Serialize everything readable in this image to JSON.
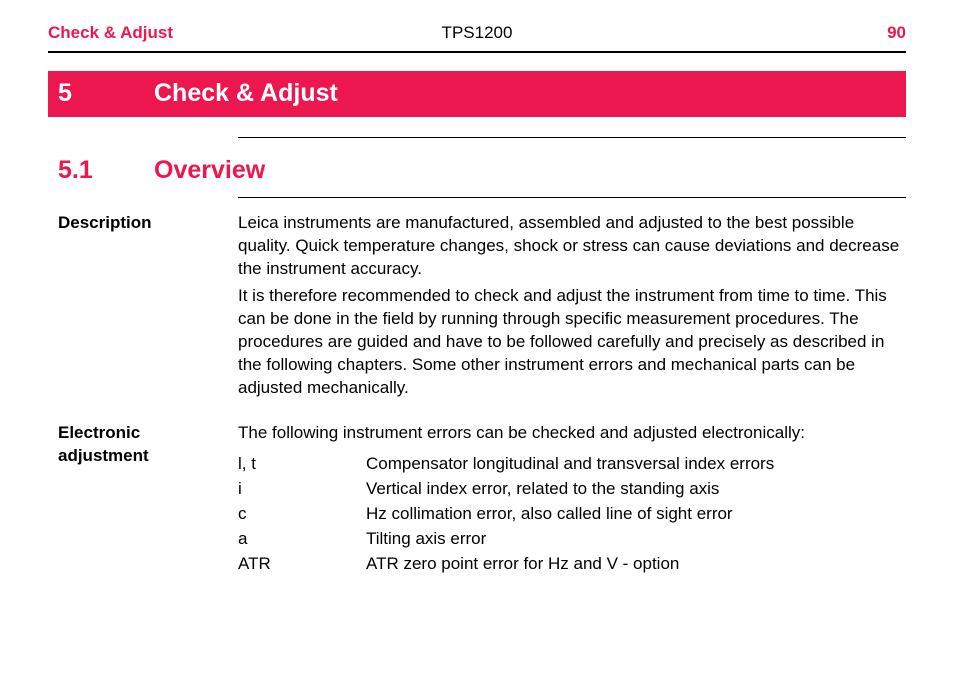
{
  "header": {
    "left": "Check & Adjust",
    "center": "TPS1200",
    "page": "90"
  },
  "chapter": {
    "number": "5",
    "title": "Check & Adjust"
  },
  "section": {
    "number": "5.1",
    "title": "Overview"
  },
  "description": {
    "label": "Description",
    "para1": "Leica instruments are manufactured, assembled and adjusted to the best possible quality. Quick temperature changes, shock or stress can cause deviations and decrease the instrument accuracy.",
    "para2": "It is therefore recommended to check and adjust the instrument from time to time. This can be done in the field by running through specific measurement procedures. The procedures are guided and have to be followed carefully and precisely as described in the following chapters. Some other instrument errors and mechanical parts can be adjusted mechanically."
  },
  "electronic": {
    "label": "Electronic adjustment",
    "intro": "The following instrument errors can be checked and adjusted electronically:",
    "errors": [
      {
        "code": "l, t",
        "desc": "Compensator longitudinal and transversal index errors"
      },
      {
        "code": "i",
        "desc": "Vertical index error, related to the standing axis"
      },
      {
        "code": "c",
        "desc": "Hz collimation error, also called line of sight error"
      },
      {
        "code": "a",
        "desc": "Tilting axis error"
      },
      {
        "code": "ATR",
        "desc": "ATR zero point error for Hz and V - option"
      }
    ]
  },
  "colors": {
    "brand": "#ed174f",
    "text": "#000000",
    "background": "#ffffff"
  }
}
